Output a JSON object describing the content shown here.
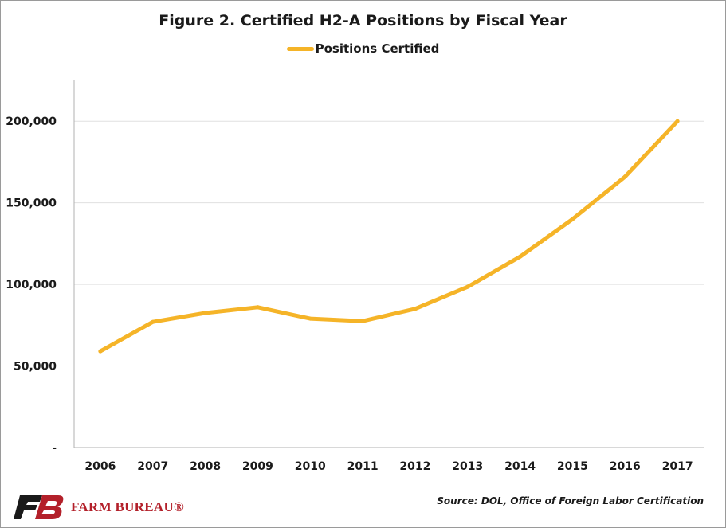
{
  "colors": {
    "series": "#f5b428",
    "grid": "#e0e0e0",
    "axis": "#b0b0b0",
    "brand_red": "#b3202a",
    "brand_dark": "#1a1a1a"
  },
  "logo": {
    "icon": "fb-logo-icon",
    "text": "FARM BUREAU®"
  },
  "source": "Source: DOL, Office of Foreign Labor Certification",
  "chart_data": {
    "type": "line",
    "title": "Figure 2. Certified H2-A Positions by Fiscal Year",
    "legend_position": "top-center",
    "grid": true,
    "categories": [
      "2006",
      "2007",
      "2008",
      "2009",
      "2010",
      "2011",
      "2012",
      "2013",
      "2014",
      "2015",
      "2016",
      "2017"
    ],
    "series": [
      {
        "name": "Positions Certified",
        "values": [
          59000,
          77000,
          82500,
          86000,
          79000,
          77500,
          85000,
          98500,
          117000,
          140000,
          166000,
          200000
        ]
      }
    ],
    "ylim": [
      0,
      225000
    ],
    "yticks": [
      0,
      50000,
      100000,
      150000,
      200000
    ],
    "ytick_labels": [
      "-",
      "50,000",
      "100,000",
      "150,000",
      "200,000"
    ],
    "xlabel": "",
    "ylabel": ""
  }
}
